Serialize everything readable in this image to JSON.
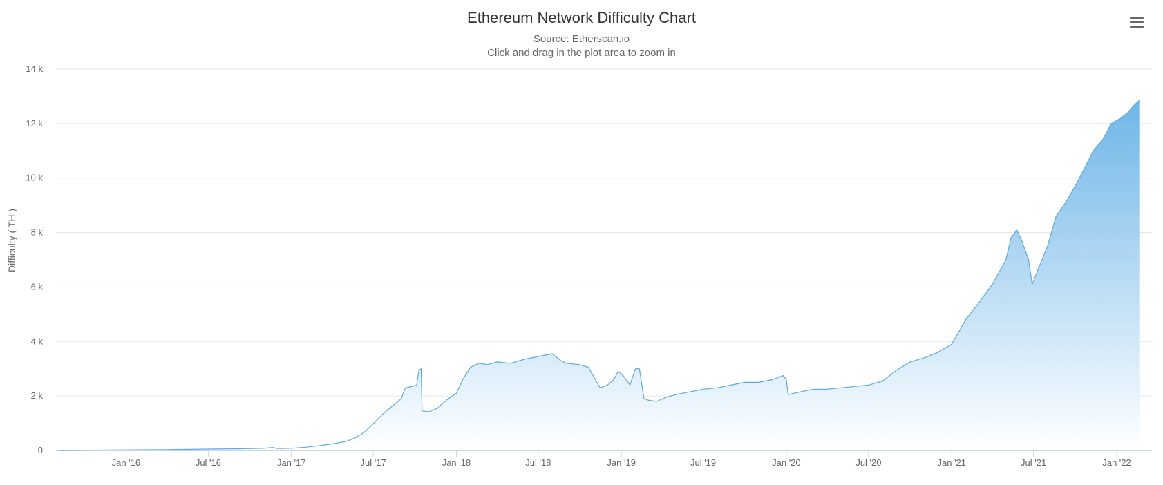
{
  "chart_data": {
    "type": "area",
    "title": "Ethereum Network Difficulty Chart",
    "subtitle": "Source: Etherscan.io",
    "subtitle2": "Click and drag in the plot area to zoom in",
    "ylabel": "Difficulty ( TH )",
    "xlabel": "",
    "ylim": [
      0,
      14000
    ],
    "yticks": [
      0,
      2000,
      4000,
      6000,
      8000,
      10000,
      12000,
      14000
    ],
    "ytick_labels": [
      "0",
      "2 k",
      "4 k",
      "6 k",
      "8 k",
      "10 k",
      "12 k",
      "14 k"
    ],
    "xlim": [
      "2015-07-30",
      "2022-03-20"
    ],
    "xticks": [
      "2016-01-01",
      "2016-07-01",
      "2017-01-01",
      "2017-07-01",
      "2018-01-01",
      "2018-07-01",
      "2019-01-01",
      "2019-07-01",
      "2020-01-01",
      "2020-07-01",
      "2021-01-01",
      "2021-07-01",
      "2022-01-01"
    ],
    "xtick_labels": [
      "Jan '16",
      "Jul '16",
      "Jan '17",
      "Jul '17",
      "Jan '18",
      "Jul '18",
      "Jan '19",
      "Jul '19",
      "Jan '20",
      "Jul '20",
      "Jan '21",
      "Jul '21",
      "Jan '22"
    ],
    "grid": true,
    "line_color": "#5aa9e0",
    "fill_color_top": "#6fb6e8",
    "fill_color_bottom": "#ffffff",
    "series": [
      {
        "x": [
          "2015-08-07",
          "2015-10-01",
          "2016-01-01",
          "2016-04-01",
          "2016-07-01",
          "2016-09-01",
          "2016-11-01",
          "2016-11-20",
          "2016-12-01",
          "2017-01-01",
          "2017-02-01",
          "2017-03-01",
          "2017-04-01",
          "2017-05-01",
          "2017-05-20",
          "2017-06-10",
          "2017-07-01",
          "2017-07-20",
          "2017-08-10",
          "2017-09-01",
          "2017-09-10",
          "2017-09-25",
          "2017-10-05",
          "2017-10-10",
          "2017-10-15",
          "2017-10-17",
          "2017-11-01",
          "2017-11-20",
          "2017-12-10",
          "2018-01-01",
          "2018-01-15",
          "2018-02-01",
          "2018-02-20",
          "2018-03-10",
          "2018-04-01",
          "2018-05-01",
          "2018-06-01",
          "2018-07-01",
          "2018-08-01",
          "2018-08-20",
          "2018-09-01",
          "2018-10-01",
          "2018-10-20",
          "2018-11-01",
          "2018-11-15",
          "2018-12-01",
          "2018-12-15",
          "2018-12-25",
          "2019-01-05",
          "2019-01-20",
          "2019-02-01",
          "2019-02-10",
          "2019-02-20",
          "2019-03-01",
          "2019-03-20",
          "2019-04-10",
          "2019-05-01",
          "2019-06-01",
          "2019-07-01",
          "2019-08-01",
          "2019-09-01",
          "2019-10-01",
          "2019-11-01",
          "2019-12-01",
          "2019-12-25",
          "2020-01-01",
          "2020-01-05",
          "2020-02-01",
          "2020-03-01",
          "2020-04-01",
          "2020-05-01",
          "2020-06-01",
          "2020-07-01",
          "2020-08-01",
          "2020-09-01",
          "2020-10-01",
          "2020-11-01",
          "2020-12-01",
          "2021-01-01",
          "2021-02-01",
          "2021-03-01",
          "2021-04-01",
          "2021-05-01",
          "2021-05-12",
          "2021-05-25",
          "2021-06-05",
          "2021-06-20",
          "2021-06-28",
          "2021-07-10",
          "2021-08-01",
          "2021-08-20",
          "2021-09-10",
          "2021-10-01",
          "2021-10-20",
          "2021-11-10",
          "2021-12-01",
          "2021-12-20",
          "2022-01-10",
          "2022-01-25",
          "2022-02-10",
          "2022-02-20"
        ],
        "y": [
          0,
          10,
          20,
          30,
          50,
          60,
          80,
          110,
          70,
          80,
          120,
          170,
          240,
          330,
          450,
          650,
          980,
          1300,
          1600,
          1900,
          2300,
          2350,
          2400,
          2950,
          3000,
          1450,
          1420,
          1550,
          1850,
          2100,
          2600,
          3050,
          3200,
          3150,
          3250,
          3200,
          3350,
          3450,
          3550,
          3300,
          3200,
          3150,
          3050,
          2700,
          2300,
          2400,
          2600,
          2900,
          2750,
          2400,
          3000,
          3000,
          1900,
          1850,
          1800,
          1950,
          2050,
          2150,
          2250,
          2300,
          2400,
          2500,
          2500,
          2600,
          2750,
          2600,
          2050,
          2150,
          2250,
          2250,
          2300,
          2350,
          2400,
          2550,
          2950,
          3250,
          3400,
          3600,
          3900,
          4800,
          5400,
          6100,
          7000,
          7800,
          8100,
          7700,
          7000,
          6100,
          6600,
          7500,
          8600,
          9100,
          9700,
          10300,
          11000,
          11400,
          12000,
          12200,
          12400,
          12700,
          12850
        ]
      }
    ]
  }
}
